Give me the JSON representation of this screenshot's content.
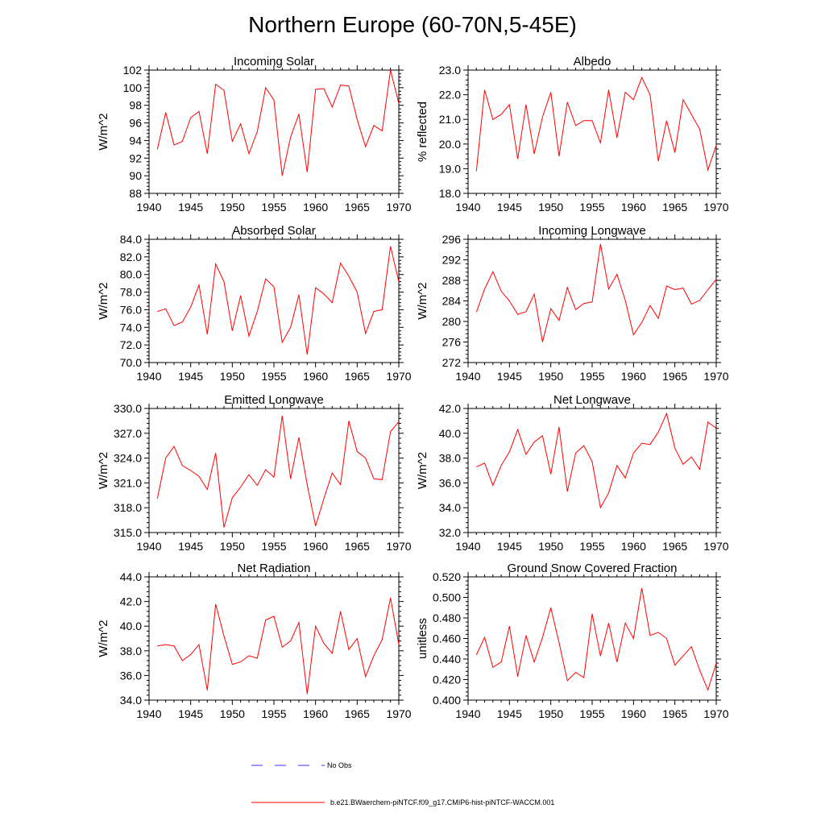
{
  "title": "Northern Europe (60-70N,5-45E)",
  "x_ticks": [
    "1940",
    "1945",
    "1950",
    "1955",
    "1960",
    "1965",
    "1970"
  ],
  "legend": {
    "no_obs": "No Obs",
    "model": "b.e21.BWaerchem-piNTCF.f09_g17.CMIP6-hist-piNTCF-WACCM.001",
    "model_color": "#ff0000",
    "no_obs_color": "#3333ff"
  },
  "chart_data": [
    {
      "type": "line",
      "title": "Incoming Solar",
      "ylabel": "W/m^2",
      "xlim": [
        1940,
        1970
      ],
      "ylim": [
        88,
        102
      ],
      "yticks": [
        "88",
        "90",
        "92",
        "94",
        "96",
        "98",
        "100",
        "102"
      ],
      "x": [
        1941,
        1942,
        1943,
        1944,
        1945,
        1946,
        1947,
        1948,
        1949,
        1950,
        1951,
        1952,
        1953,
        1954,
        1955,
        1956,
        1957,
        1958,
        1959,
        1960,
        1961,
        1962,
        1963,
        1964,
        1965,
        1966,
        1967,
        1968,
        1969,
        1970
      ],
      "series": [
        {
          "values": [
            93.0,
            97.2,
            93.5,
            93.9,
            96.6,
            97.3,
            92.5,
            100.4,
            99.7,
            93.9,
            95.9,
            92.5,
            95.0,
            100.0,
            98.6,
            90.0,
            94.4,
            97.0,
            90.4,
            99.8,
            99.9,
            97.8,
            100.3,
            100.2,
            96.4,
            93.3,
            95.7,
            95.1,
            102.0,
            98.2
          ]
        }
      ]
    },
    {
      "type": "line",
      "title": "Albedo",
      "ylabel": "% reflected",
      "xlim": [
        1940,
        1970
      ],
      "ylim": [
        18.0,
        23.0
      ],
      "yticks": [
        "18.0",
        "19.0",
        "20.0",
        "21.0",
        "22.0",
        "23.0"
      ],
      "x": [
        1941,
        1942,
        1943,
        1944,
        1945,
        1946,
        1947,
        1948,
        1949,
        1950,
        1951,
        1952,
        1953,
        1954,
        1955,
        1956,
        1957,
        1958,
        1959,
        1960,
        1961,
        1962,
        1963,
        1964,
        1965,
        1966,
        1967,
        1968,
        1969,
        1970
      ],
      "series": [
        {
          "values": [
            18.9,
            22.2,
            21.0,
            21.2,
            21.6,
            19.4,
            21.6,
            19.6,
            21.1,
            22.1,
            19.5,
            21.7,
            20.75,
            20.95,
            20.95,
            20.05,
            22.2,
            20.25,
            22.1,
            21.8,
            22.7,
            22.0,
            19.3,
            20.95,
            19.65,
            21.8,
            21.2,
            20.6,
            18.95,
            19.95
          ]
        }
      ]
    },
    {
      "type": "line",
      "title": "Absorbed Solar",
      "ylabel": "W/m^2",
      "xlim": [
        1940,
        1970
      ],
      "ylim": [
        70.0,
        84.0
      ],
      "yticks": [
        "70.0",
        "72.0",
        "74.0",
        "76.0",
        "78.0",
        "80.0",
        "82.0",
        "84.0"
      ],
      "x": [
        1941,
        1942,
        1943,
        1944,
        1945,
        1946,
        1947,
        1948,
        1949,
        1950,
        1951,
        1952,
        1953,
        1954,
        1955,
        1956,
        1957,
        1958,
        1959,
        1960,
        1961,
        1962,
        1963,
        1964,
        1965,
        1966,
        1967,
        1968,
        1969,
        1970
      ],
      "series": [
        {
          "values": [
            75.8,
            76.1,
            74.2,
            74.6,
            76.3,
            78.8,
            73.2,
            81.2,
            79.2,
            73.6,
            77.6,
            73.0,
            75.8,
            79.5,
            78.6,
            72.3,
            74.0,
            77.7,
            70.9,
            78.5,
            77.8,
            76.8,
            81.3,
            79.8,
            78.0,
            73.3,
            75.8,
            76.0,
            83.2,
            79.2
          ]
        }
      ]
    },
    {
      "type": "line",
      "title": "Incoming Longwave",
      "ylabel": "W/m^2",
      "xlim": [
        1940,
        1970
      ],
      "ylim": [
        272,
        296
      ],
      "yticks": [
        "272",
        "276",
        "280",
        "284",
        "288",
        "292",
        "296"
      ],
      "x": [
        1941,
        1942,
        1943,
        1944,
        1945,
        1946,
        1947,
        1948,
        1949,
        1950,
        1951,
        1952,
        1953,
        1954,
        1955,
        1956,
        1957,
        1958,
        1959,
        1960,
        1961,
        1962,
        1963,
        1964,
        1965,
        1966,
        1967,
        1968,
        1969,
        1970
      ],
      "series": [
        {
          "values": [
            281.8,
            286.3,
            289.7,
            285.9,
            284.0,
            281.4,
            281.9,
            285.3,
            276.0,
            282.5,
            280.2,
            286.6,
            282.3,
            283.5,
            283.8,
            295.1,
            286.3,
            289.2,
            284.1,
            277.4,
            279.8,
            283.1,
            280.6,
            286.9,
            286.2,
            286.5,
            283.4,
            284.1,
            286.2,
            288.2
          ]
        }
      ]
    },
    {
      "type": "line",
      "title": "Emitted Longwave",
      "ylabel": "W/m^2",
      "xlim": [
        1940,
        1970
      ],
      "ylim": [
        315.0,
        330.0
      ],
      "yticks": [
        "315.0",
        "318.0",
        "321.0",
        "324.0",
        "327.0",
        "330.0"
      ],
      "x": [
        1941,
        1942,
        1943,
        1944,
        1945,
        1946,
        1947,
        1948,
        1949,
        1950,
        1951,
        1952,
        1953,
        1954,
        1955,
        1956,
        1957,
        1958,
        1959,
        1960,
        1961,
        1962,
        1963,
        1964,
        1965,
        1966,
        1967,
        1968,
        1969,
        1970
      ],
      "series": [
        {
          "values": [
            319.1,
            324.0,
            325.4,
            323.1,
            322.5,
            321.8,
            320.2,
            324.6,
            315.6,
            319.2,
            320.5,
            322.0,
            320.7,
            322.6,
            321.7,
            329.1,
            321.5,
            326.5,
            320.8,
            315.8,
            319.1,
            322.2,
            320.8,
            328.5,
            324.8,
            324.0,
            321.5,
            321.4,
            327.2,
            328.4
          ]
        }
      ]
    },
    {
      "type": "line",
      "title": "Net Longwave",
      "ylabel": "W/m^2",
      "xlim": [
        1940,
        1970
      ],
      "ylim": [
        32.0,
        42.0
      ],
      "yticks": [
        "32.0",
        "34.0",
        "36.0",
        "38.0",
        "40.0",
        "42.0"
      ],
      "x": [
        1941,
        1942,
        1943,
        1944,
        1945,
        1946,
        1947,
        1948,
        1949,
        1950,
        1951,
        1952,
        1953,
        1954,
        1955,
        1956,
        1957,
        1958,
        1959,
        1960,
        1961,
        1962,
        1963,
        1964,
        1965,
        1966,
        1967,
        1968,
        1969,
        1970
      ],
      "series": [
        {
          "values": [
            37.3,
            37.6,
            35.8,
            37.4,
            38.5,
            40.3,
            38.3,
            39.3,
            39.8,
            36.7,
            40.5,
            35.3,
            38.4,
            39.0,
            37.7,
            34.0,
            35.2,
            37.4,
            36.4,
            38.4,
            39.2,
            39.1,
            40.1,
            41.6,
            38.8,
            37.5,
            38.1,
            37.1,
            40.9,
            40.4
          ]
        }
      ]
    },
    {
      "type": "line",
      "title": "Net Radiation",
      "ylabel": "W/m^2",
      "xlim": [
        1940,
        1970
      ],
      "ylim": [
        34.0,
        44.0
      ],
      "yticks": [
        "34.0",
        "36.0",
        "38.0",
        "40.0",
        "42.0",
        "44.0"
      ],
      "x": [
        1941,
        1942,
        1943,
        1944,
        1945,
        1946,
        1947,
        1948,
        1949,
        1950,
        1951,
        1952,
        1953,
        1954,
        1955,
        1956,
        1957,
        1958,
        1959,
        1960,
        1961,
        1962,
        1963,
        1964,
        1965,
        1966,
        1967,
        1968,
        1969,
        1970
      ],
      "series": [
        {
          "values": [
            38.4,
            38.5,
            38.4,
            37.2,
            37.7,
            38.5,
            34.8,
            41.8,
            39.2,
            36.9,
            37.1,
            37.6,
            37.4,
            40.5,
            40.8,
            38.3,
            38.8,
            40.3,
            34.5,
            40.0,
            38.6,
            37.8,
            41.2,
            38.1,
            39.0,
            35.9,
            37.6,
            38.9,
            42.3,
            38.5
          ]
        }
      ]
    },
    {
      "type": "line",
      "title": "Ground Snow Covered Fraction",
      "ylabel": "unitless",
      "xlim": [
        1940,
        1970
      ],
      "ylim": [
        0.4,
        0.52
      ],
      "yticks": [
        "0.400",
        "0.420",
        "0.440",
        "0.460",
        "0.480",
        "0.500",
        "0.520"
      ],
      "x": [
        1941,
        1942,
        1943,
        1944,
        1945,
        1946,
        1947,
        1948,
        1949,
        1950,
        1951,
        1952,
        1953,
        1954,
        1955,
        1956,
        1957,
        1958,
        1959,
        1960,
        1961,
        1962,
        1963,
        1964,
        1965,
        1966,
        1967,
        1968,
        1969,
        1970
      ],
      "series": [
        {
          "values": [
            0.444,
            0.461,
            0.432,
            0.437,
            0.472,
            0.423,
            0.463,
            0.437,
            0.461,
            0.49,
            0.456,
            0.419,
            0.427,
            0.422,
            0.484,
            0.443,
            0.475,
            0.437,
            0.475,
            0.46,
            0.509,
            0.463,
            0.466,
            0.46,
            0.434,
            0.443,
            0.452,
            0.429,
            0.41,
            0.436
          ]
        }
      ]
    }
  ]
}
